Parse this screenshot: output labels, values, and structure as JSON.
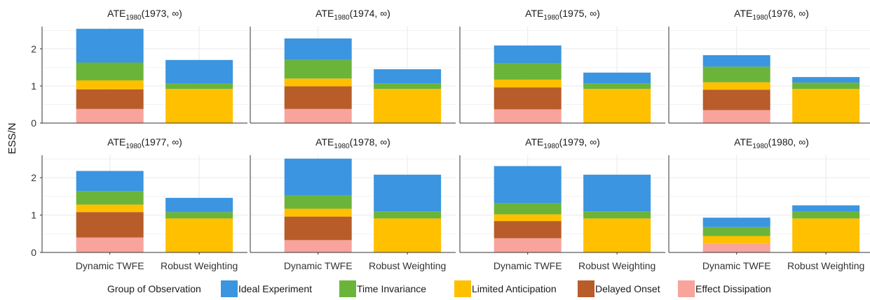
{
  "chart_data": {
    "type": "bar",
    "stacked": true,
    "ylabel": "ESS/N",
    "xlabel": "",
    "ylim": [
      0,
      2.6
    ],
    "yticks": [
      0,
      1,
      2
    ],
    "grid": true,
    "categories": [
      "Dynamic TWFE",
      "Robust Weighting"
    ],
    "legend": {
      "title": "Group of Observation",
      "position": "bottom"
    },
    "series": [
      {
        "name": "Effect Dissipation",
        "color": "#F8A39C"
      },
      {
        "name": "Delayed Onset",
        "color": "#B85C2A"
      },
      {
        "name": "Limited Anticipation",
        "color": "#FFC000"
      },
      {
        "name": "Time Invariance",
        "color": "#6BB43A"
      },
      {
        "name": "Ideal Experiment",
        "color": "#3B95E0"
      }
    ],
    "legend_order": [
      "Ideal Experiment",
      "Time Invariance",
      "Limited Anticipation",
      "Delayed Onset",
      "Effect Dissipation"
    ],
    "panels": [
      {
        "title": {
          "base": "ATE",
          "sub": "1980",
          "rest": "(1973, ∞)"
        },
        "values": {
          "Dynamic TWFE": [
            0.38,
            0.53,
            0.24,
            0.48,
            0.91
          ],
          "Robust Weighting": [
            0,
            0,
            0.92,
            0.14,
            0.64
          ]
        }
      },
      {
        "title": {
          "base": "ATE",
          "sub": "1980",
          "rest": "(1974, ∞)"
        },
        "values": {
          "Dynamic TWFE": [
            0.38,
            0.61,
            0.21,
            0.5,
            0.58
          ],
          "Robust Weighting": [
            0,
            0,
            0.92,
            0.15,
            0.38
          ]
        }
      },
      {
        "title": {
          "base": "ATE",
          "sub": "1980",
          "rest": "(1975, ∞)"
        },
        "values": {
          "Dynamic TWFE": [
            0.37,
            0.59,
            0.21,
            0.45,
            0.47
          ],
          "Robust Weighting": [
            0,
            0,
            0.92,
            0.15,
            0.29
          ]
        }
      },
      {
        "title": {
          "base": "ATE",
          "sub": "1980",
          "rest": "(1976, ∞)"
        },
        "values": {
          "Dynamic TWFE": [
            0.35,
            0.55,
            0.2,
            0.42,
            0.31
          ],
          "Robust Weighting": [
            0,
            0,
            0.92,
            0.17,
            0.15
          ]
        }
      },
      {
        "title": {
          "base": "ATE",
          "sub": "1980",
          "rest": "(1977, ∞)"
        },
        "values": {
          "Dynamic TWFE": [
            0.4,
            0.68,
            0.2,
            0.36,
            0.54
          ],
          "Robust Weighting": [
            0,
            0,
            0.91,
            0.17,
            0.38
          ]
        }
      },
      {
        "title": {
          "base": "ATE",
          "sub": "1980",
          "rest": "(1978, ∞)"
        },
        "values": {
          "Dynamic TWFE": [
            0.33,
            0.63,
            0.21,
            0.35,
            0.99
          ],
          "Robust Weighting": [
            0,
            0,
            0.91,
            0.19,
            0.98
          ]
        }
      },
      {
        "title": {
          "base": "ATE",
          "sub": "1980",
          "rest": "(1979, ∞)"
        },
        "values": {
          "Dynamic TWFE": [
            0.38,
            0.46,
            0.18,
            0.3,
            0.99
          ],
          "Robust Weighting": [
            0,
            0,
            0.91,
            0.19,
            0.98
          ]
        }
      },
      {
        "title": {
          "base": "ATE",
          "sub": "1980",
          "rest": "(1980, ∞)"
        },
        "values": {
          "Dynamic TWFE": [
            0.23,
            0,
            0.21,
            0.24,
            0.25
          ],
          "Robust Weighting": [
            0,
            0,
            0.91,
            0.18,
            0.17
          ]
        }
      }
    ]
  }
}
